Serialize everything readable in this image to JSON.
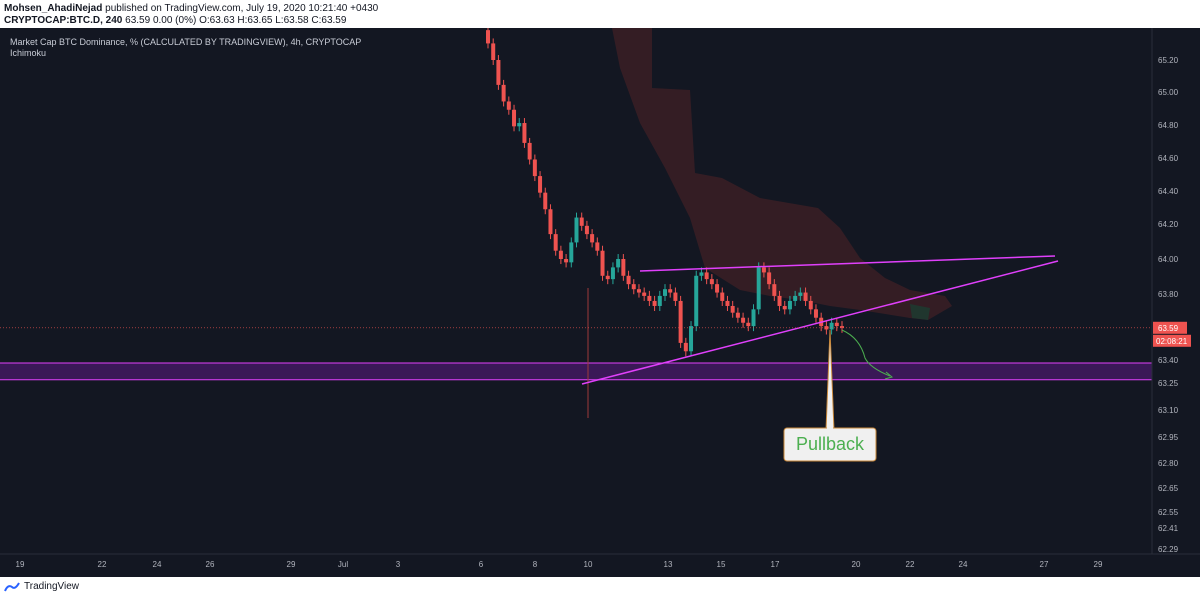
{
  "header": {
    "author": "Mohsen_AhadiNejad",
    "published_text": "published on TradingView.com, July 19, 2020 10:21:40 +0430",
    "symbol": "CRYPTOCAP:BTC.D, 240",
    "quote": "63.59 0.00 (0%) O:63.63 H:63.65 L:63.58 C:63.59"
  },
  "legend": {
    "title": "Market Cap BTC Dominance, % (CALCULATED BY TRADINGVIEW), 4h, CRYPTOCAP",
    "indicator": "Ichimoku"
  },
  "price_scale": {
    "ticks": [
      "65.20",
      "65.00",
      "64.80",
      "64.60",
      "64.40",
      "64.20",
      "64.00",
      "63.80",
      "63.40",
      "63.25",
      "63.10",
      "62.95",
      "62.80",
      "62.65",
      "62.55",
      "62.41",
      "62.29"
    ],
    "last_price": "63.59",
    "countdown": "02:08:21"
  },
  "time_scale": {
    "ticks": [
      "19",
      "22",
      "24",
      "26",
      "29",
      "Jul",
      "3",
      "6",
      "8",
      "10",
      "13",
      "15",
      "17",
      "20",
      "22",
      "24",
      "27",
      "29"
    ]
  },
  "annotation": {
    "callout_text": "Pullback"
  },
  "footer": {
    "brand": "TradingView"
  },
  "colors": {
    "background": "#131722",
    "up": "#26a69a",
    "down": "#ef5350",
    "trendline": "#e040fb",
    "zone_fill": "#6a1b9a",
    "cloud": "#3d1f26",
    "last_price_line": "#ef5350",
    "callout_fill": "#f0f0f0",
    "callout_border": "#c9883a",
    "callout_text": "#4caf50",
    "arrow": "#4caf50",
    "crosshair": "#9e3a3a"
  },
  "chart_data": {
    "type": "candlestick",
    "x_axis": "date (Jun 19 – Jul 29, 2020)",
    "y_axis": "BTC dominance %",
    "ylim": [
      62.29,
      65.3
    ],
    "grid": false,
    "candles_close_path": [
      65.3,
      65.2,
      65.05,
      64.95,
      64.9,
      64.8,
      64.82,
      64.7,
      64.6,
      64.5,
      64.4,
      64.3,
      64.15,
      64.05,
      64.0,
      63.98,
      64.1,
      64.25,
      64.2,
      64.15,
      64.1,
      64.05,
      63.9,
      63.88,
      63.95,
      64.0,
      63.9,
      63.85,
      63.82,
      63.8,
      63.78,
      63.75,
      63.72,
      63.78,
      63.82,
      63.8,
      63.75,
      63.5,
      63.45,
      63.6,
      63.9,
      63.92,
      63.88,
      63.85,
      63.8,
      63.75,
      63.72,
      63.68,
      63.65,
      63.62,
      63.6,
      63.7,
      63.95,
      63.92,
      63.85,
      63.78,
      63.72,
      63.7,
      63.75,
      63.78,
      63.8,
      63.75,
      63.7,
      63.65,
      63.6,
      63.58,
      63.62,
      63.6,
      63.59
    ],
    "annotations": [
      "ascending triangle trendlines",
      "horizontal support zone 63.28–63.38",
      "projected pullback arrow"
    ]
  }
}
